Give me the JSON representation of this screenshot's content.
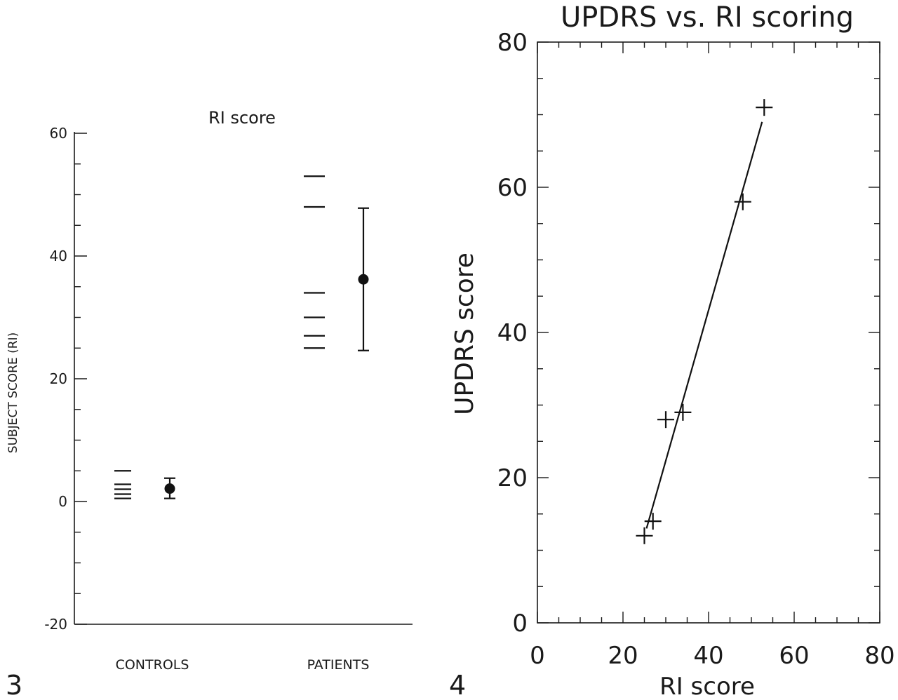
{
  "chart_data": [
    {
      "panel": "3",
      "type": "scatter",
      "title": "RI score",
      "ylabel": "SUBJECT SCORE (RI)",
      "ylim": [
        -20,
        60
      ],
      "y_ticks": [
        -20,
        0,
        20,
        40,
        60
      ],
      "categories": [
        "CONTROLS",
        "PATIENTS"
      ],
      "groups": [
        {
          "name": "CONTROLS",
          "individual_values": [
            0.5,
            1.2,
            2.0,
            2.8,
            5.0
          ],
          "mean": 2.1,
          "error_low": 0.5,
          "error_high": 3.8
        },
        {
          "name": "PATIENTS",
          "individual_values": [
            25,
            27,
            30,
            34,
            48,
            53
          ],
          "mean": 36.2,
          "error_low": 24.6,
          "error_high": 47.8
        }
      ]
    },
    {
      "panel": "4",
      "type": "scatter",
      "title": "UPDRS vs. RI scoring",
      "xlabel": "RI score",
      "ylabel": "UPDRS score",
      "xlim": [
        0,
        80
      ],
      "ylim": [
        0,
        80
      ],
      "x_ticks": [
        0,
        20,
        40,
        60,
        80
      ],
      "y_ticks": [
        0,
        20,
        40,
        60,
        80
      ],
      "points": [
        {
          "x": 25,
          "y": 12
        },
        {
          "x": 27,
          "y": 14
        },
        {
          "x": 30,
          "y": 28
        },
        {
          "x": 34,
          "y": 29
        },
        {
          "x": 48,
          "y": 58
        },
        {
          "x": 53,
          "y": 71
        }
      ],
      "fit_line": {
        "x": [
          25.5,
          52.5
        ],
        "y": [
          13,
          69
        ]
      }
    }
  ]
}
